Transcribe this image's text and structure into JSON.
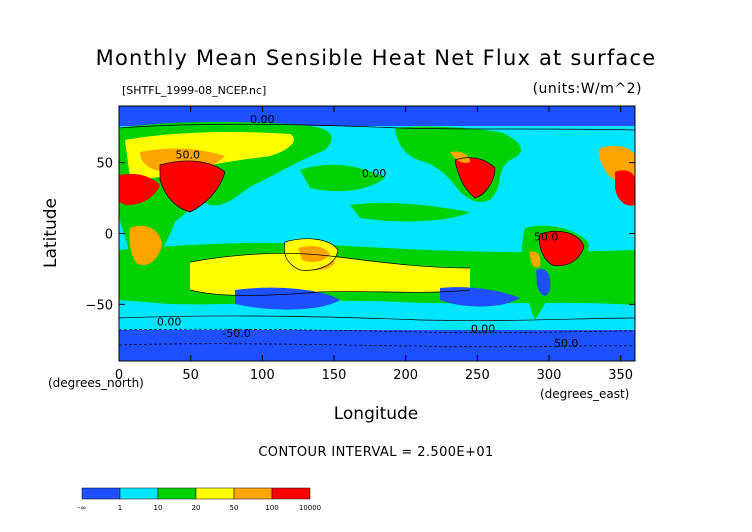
{
  "chart_data": {
    "type": "heatmap",
    "title": "Monthly Mean Sensible Heat Net Flux at surface",
    "source_file": "[SHTFL_1999-08_NCEP.nc]",
    "units": "(units:W/m^2)",
    "xlabel": "Longitude",
    "ylabel": "Latitude",
    "x_units": "(degrees_north)",
    "x_units_right": "(degrees_east)",
    "xlim": [
      0,
      360
    ],
    "ylim": [
      -90,
      90
    ],
    "x_ticks": [
      0,
      50,
      100,
      150,
      200,
      250,
      300,
      350
    ],
    "y_ticks": [
      50,
      0,
      -50
    ],
    "x_tick_labels": [
      "0",
      "50",
      "100",
      "150",
      "200",
      "250",
      "300",
      "350"
    ],
    "y_tick_labels": [
      "50",
      "0",
      "−50"
    ],
    "contour_interval": "CONTOUR INTERVAL = 2.500E+01",
    "legend": {
      "labels": [
        "-∞",
        "1",
        "10",
        "20",
        "50",
        "100",
        "10000"
      ],
      "colors": [
        "#1e50ff",
        "#00e6ff",
        "#00d200",
        "#ffff00",
        "#ffa500",
        "#ff0000"
      ]
    },
    "contour_labels": [
      {
        "text": "0.00",
        "lon": 100,
        "lat": 78
      },
      {
        "text": "50.0",
        "lon": 48,
        "lat": 53
      },
      {
        "text": "0.00",
        "lon": 178,
        "lat": 40
      },
      {
        "text": "50.0",
        "lon": 298,
        "lat": -5
      },
      {
        "text": "0.00",
        "lon": 35,
        "lat": -65
      },
      {
        "text": "-50.0",
        "lon": 82,
        "lat": -73
      },
      {
        "text": "0.00",
        "lon": 254,
        "lat": -70
      },
      {
        "text": "50.0",
        "lon": 312,
        "lat": -80
      }
    ]
  }
}
